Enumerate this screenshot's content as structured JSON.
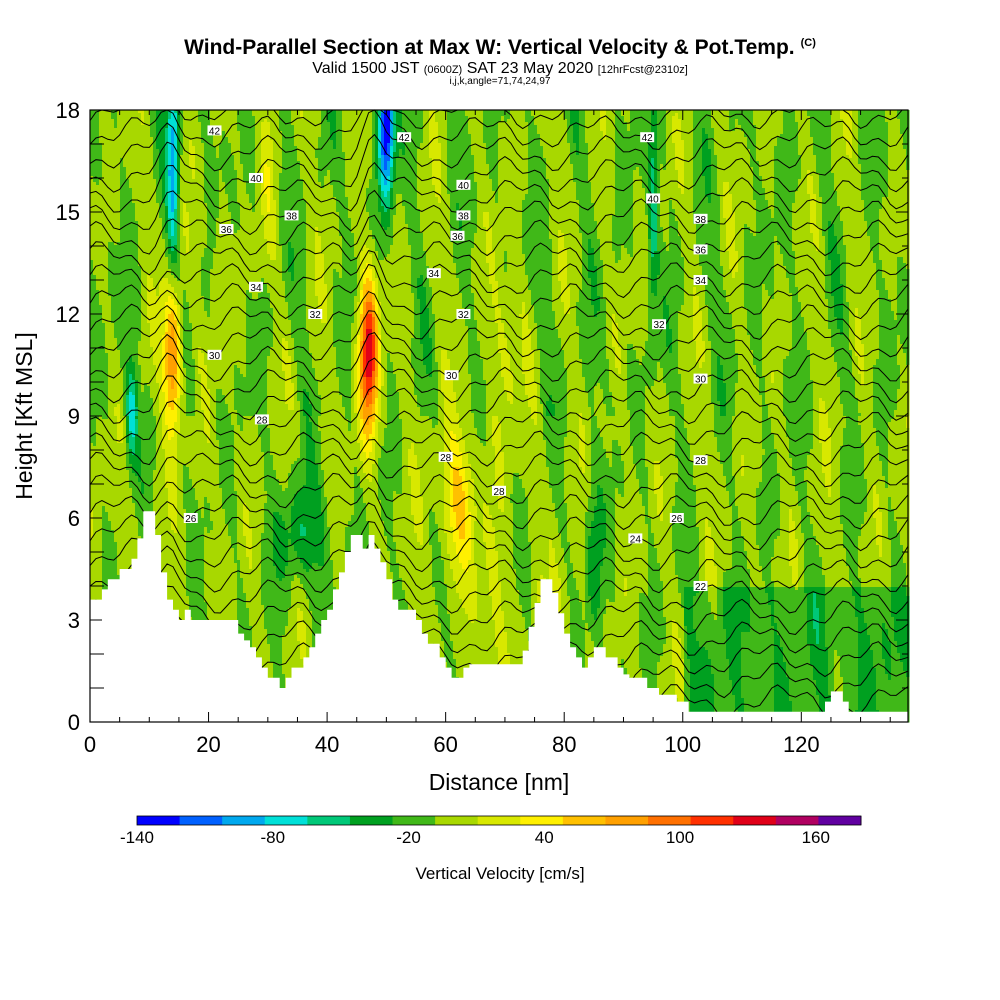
{
  "chart_data": {
    "type": "heatmap",
    "title": "Wind-Parallel Section at Max W: Vertical Velocity & Pot.Temp.",
    "title_mark": "(C)",
    "subtitle_main": "Valid 1500 JST",
    "subtitle_utc": "(0600Z)",
    "subtitle_date": "SAT 23 May 2020",
    "subtitle_fcst": "[12hrFcst@2310z]",
    "subtitle2": "i,j,k,angle=71,74,24,97",
    "xlabel": "Distance [nm]",
    "ylabel": "Height [Kft MSL]",
    "xlim": [
      0,
      138
    ],
    "ylim": [
      0,
      18
    ],
    "x_ticks": [
      "0",
      "20",
      "40",
      "60",
      "80",
      "100",
      "120"
    ],
    "y_ticks": [
      "0",
      "3",
      "6",
      "9",
      "12",
      "15",
      "18"
    ],
    "colorbar": {
      "title": "Vertical Velocity [cm/s]",
      "tick_labels": [
        "-140",
        "-80",
        "-20",
        "40",
        "100",
        "160"
      ],
      "tick_values": [
        -140,
        -80,
        -20,
        40,
        100,
        160
      ],
      "levels": [
        -140,
        -120,
        -100,
        -80,
        -60,
        -40,
        -20,
        0,
        20,
        40,
        60,
        80,
        100,
        120,
        140,
        160,
        180
      ],
      "colors": [
        "#0000ff",
        "#0060ff",
        "#00a8ee",
        "#00e0d8",
        "#00c878",
        "#00a020",
        "#40b818",
        "#a8d800",
        "#d8e800",
        "#fff000",
        "#ffc000",
        "#ffa000",
        "#ff7000",
        "#ff3000",
        "#e00018",
        "#b00060",
        "#6000a0"
      ]
    },
    "updrafts": [
      {
        "x": 14,
        "z_min": 8.5,
        "z_max": 13.2,
        "w_max": 120
      },
      {
        "x": 47,
        "z_min": 6.0,
        "z_max": 13.5,
        "w_max": 160
      },
      {
        "x": 62,
        "z_min": 5.0,
        "z_max": 8.5,
        "w_max": 80
      }
    ],
    "downdrafts": [
      {
        "x": 14,
        "z_min": 13.5,
        "z_max": 18.0,
        "w_min": -80
      },
      {
        "x": 50,
        "z_min": 13.0,
        "z_max": 18.0,
        "w_min": -140
      }
    ],
    "theta_contour_labels": [
      {
        "value": "42",
        "x": 21,
        "z": 17.4
      },
      {
        "value": "42",
        "x": 53,
        "z": 17.2
      },
      {
        "value": "42",
        "x": 94,
        "z": 17.2
      },
      {
        "value": "40",
        "x": 28,
        "z": 16.0
      },
      {
        "value": "40",
        "x": 63,
        "z": 15.8
      },
      {
        "value": "40",
        "x": 95,
        "z": 15.4
      },
      {
        "value": "38",
        "x": 34,
        "z": 14.9
      },
      {
        "value": "38",
        "x": 63,
        "z": 14.9
      },
      {
        "value": "38",
        "x": 103,
        "z": 14.8
      },
      {
        "value": "36",
        "x": 23,
        "z": 14.5
      },
      {
        "value": "36",
        "x": 62,
        "z": 14.3
      },
      {
        "value": "36",
        "x": 103,
        "z": 13.9
      },
      {
        "value": "34",
        "x": 28,
        "z": 12.8
      },
      {
        "value": "34",
        "x": 58,
        "z": 13.2
      },
      {
        "value": "34",
        "x": 103,
        "z": 13.0
      },
      {
        "value": "32",
        "x": 38,
        "z": 12.0
      },
      {
        "value": "32",
        "x": 63,
        "z": 12.0
      },
      {
        "value": "32",
        "x": 96,
        "z": 11.7
      },
      {
        "value": "30",
        "x": 21,
        "z": 10.8
      },
      {
        "value": "30",
        "x": 61,
        "z": 10.2
      },
      {
        "value": "30",
        "x": 103,
        "z": 10.1
      },
      {
        "value": "28",
        "x": 29,
        "z": 8.9
      },
      {
        "value": "28",
        "x": 60,
        "z": 7.8
      },
      {
        "value": "28",
        "x": 69,
        "z": 6.8
      },
      {
        "value": "28",
        "x": 103,
        "z": 7.7
      },
      {
        "value": "26",
        "x": 17,
        "z": 6.0
      },
      {
        "value": "26",
        "x": 99,
        "z": 6.0
      },
      {
        "value": "24",
        "x": 92,
        "z": 5.4
      },
      {
        "value": "22",
        "x": 103,
        "z": 4.0
      }
    ],
    "terrain": [
      [
        0,
        3.6
      ],
      [
        2,
        3.6
      ],
      [
        2,
        3.9
      ],
      [
        3,
        3.9
      ],
      [
        3,
        4.2
      ],
      [
        5,
        4.2
      ],
      [
        5,
        4.5
      ],
      [
        7,
        4.5
      ],
      [
        7,
        4.8
      ],
      [
        8,
        4.8
      ],
      [
        8,
        5.4
      ],
      [
        9,
        5.4
      ],
      [
        9,
        6.2
      ],
      [
        11,
        6.2
      ],
      [
        11,
        5.5
      ],
      [
        12,
        5.5
      ],
      [
        12,
        4.4
      ],
      [
        13,
        4.4
      ],
      [
        13,
        3.6
      ],
      [
        14,
        3.6
      ],
      [
        14,
        3.3
      ],
      [
        15,
        3.3
      ],
      [
        15,
        3.0
      ],
      [
        16,
        3.0
      ],
      [
        16,
        3.3
      ],
      [
        17,
        3.3
      ],
      [
        17,
        3.0
      ],
      [
        25,
        3.0
      ],
      [
        25,
        2.6
      ],
      [
        26,
        2.6
      ],
      [
        26,
        2.4
      ],
      [
        27,
        2.4
      ],
      [
        27,
        2.2
      ],
      [
        28,
        2.2
      ],
      [
        28,
        1.9
      ],
      [
        29,
        1.9
      ],
      [
        29,
        1.6
      ],
      [
        30,
        1.6
      ],
      [
        30,
        1.3
      ],
      [
        32,
        1.3
      ],
      [
        32,
        1.0
      ],
      [
        33,
        1.0
      ],
      [
        33,
        1.3
      ],
      [
        34,
        1.3
      ],
      [
        34,
        1.6
      ],
      [
        36,
        1.6
      ],
      [
        36,
        1.9
      ],
      [
        37,
        1.9
      ],
      [
        37,
        2.2
      ],
      [
        38,
        2.2
      ],
      [
        38,
        2.6
      ],
      [
        39,
        2.6
      ],
      [
        39,
        3.0
      ],
      [
        40,
        3.0
      ],
      [
        40,
        3.3
      ],
      [
        41,
        3.3
      ],
      [
        41,
        3.9
      ],
      [
        42,
        3.9
      ],
      [
        42,
        4.4
      ],
      [
        43,
        4.4
      ],
      [
        43,
        5.0
      ],
      [
        44,
        5.0
      ],
      [
        44,
        5.5
      ],
      [
        46,
        5.5
      ],
      [
        46,
        5.1
      ],
      [
        47,
        5.1
      ],
      [
        47,
        5.5
      ],
      [
        48,
        5.5
      ],
      [
        48,
        5.1
      ],
      [
        49,
        5.1
      ],
      [
        49,
        4.7
      ],
      [
        50,
        4.7
      ],
      [
        50,
        4.2
      ],
      [
        51,
        4.2
      ],
      [
        51,
        3.6
      ],
      [
        52,
        3.6
      ],
      [
        52,
        3.3
      ],
      [
        55,
        3.3
      ],
      [
        55,
        3.0
      ],
      [
        56,
        3.0
      ],
      [
        56,
        2.6
      ],
      [
        57,
        2.6
      ],
      [
        57,
        2.3
      ],
      [
        59,
        2.3
      ],
      [
        59,
        1.9
      ],
      [
        60,
        1.9
      ],
      [
        60,
        1.6
      ],
      [
        61,
        1.6
      ],
      [
        61,
        1.3
      ],
      [
        63,
        1.3
      ],
      [
        63,
        1.6
      ],
      [
        64,
        1.6
      ],
      [
        64,
        1.7
      ],
      [
        73,
        1.7
      ],
      [
        73,
        2.1
      ],
      [
        74,
        2.1
      ],
      [
        74,
        2.8
      ],
      [
        75,
        2.8
      ],
      [
        75,
        3.5
      ],
      [
        76,
        3.5
      ],
      [
        76,
        4.2
      ],
      [
        78,
        4.2
      ],
      [
        78,
        3.8
      ],
      [
        79,
        3.8
      ],
      [
        79,
        3.2
      ],
      [
        80,
        3.2
      ],
      [
        80,
        2.6
      ],
      [
        81,
        2.6
      ],
      [
        81,
        2.2
      ],
      [
        82,
        2.2
      ],
      [
        82,
        1.9
      ],
      [
        83,
        1.9
      ],
      [
        83,
        1.6
      ],
      [
        84,
        1.6
      ],
      [
        84,
        1.9
      ],
      [
        85,
        1.9
      ],
      [
        85,
        2.2
      ],
      [
        87,
        2.2
      ],
      [
        87,
        1.9
      ],
      [
        89,
        1.9
      ],
      [
        89,
        1.6
      ],
      [
        90,
        1.6
      ],
      [
        90,
        1.4
      ],
      [
        91,
        1.4
      ],
      [
        91,
        1.3
      ],
      [
        94,
        1.3
      ],
      [
        94,
        1.0
      ],
      [
        96,
        1.0
      ],
      [
        96,
        0.8
      ],
      [
        99,
        0.8
      ],
      [
        99,
        0.6
      ],
      [
        101,
        0.6
      ],
      [
        101,
        0.3
      ],
      [
        124,
        0.3
      ],
      [
        124,
        0.6
      ],
      [
        125,
        0.6
      ],
      [
        125,
        0.9
      ],
      [
        127,
        0.9
      ],
      [
        127,
        0.6
      ],
      [
        128,
        0.6
      ],
      [
        128,
        0.3
      ],
      [
        138,
        0.3
      ],
      [
        138,
        0
      ]
    ]
  }
}
